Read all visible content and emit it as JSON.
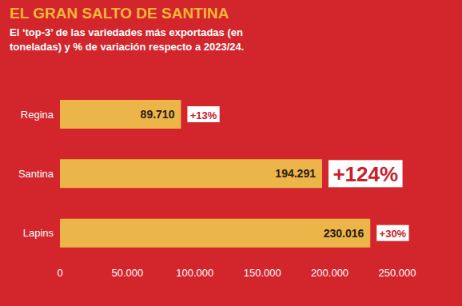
{
  "chart_data": {
    "type": "bar",
    "orientation": "horizontal",
    "title": "EL GRAN SALTO DE SANTINA",
    "subtitle": "El ‘top-3’ de las variedades más exportadas (en toneladas) y % de variación respecto a 2023/24.",
    "categories": [
      "Regina",
      "Santina",
      "Lapins"
    ],
    "values": [
      89710,
      194291,
      230016
    ],
    "value_labels": [
      "89.710",
      "194.291",
      "230.016"
    ],
    "changes": [
      13,
      124,
      30
    ],
    "change_labels": [
      "+13%",
      "+124%",
      "+30%"
    ],
    "color": "#ebb54a",
    "xlim": [
      0,
      250000
    ],
    "xticks": [
      0,
      {
        "value": 50000,
        "label": "50.000"
      },
      {
        "value": 100000,
        "label": "100.000"
      },
      {
        "value": 150000,
        "label": "150.000"
      },
      {
        "value": 200000,
        "label": "200.000"
      },
      {
        "value": 250000,
        "label": "250.000"
      }
    ],
    "grid": false,
    "data_labels": true
  }
}
